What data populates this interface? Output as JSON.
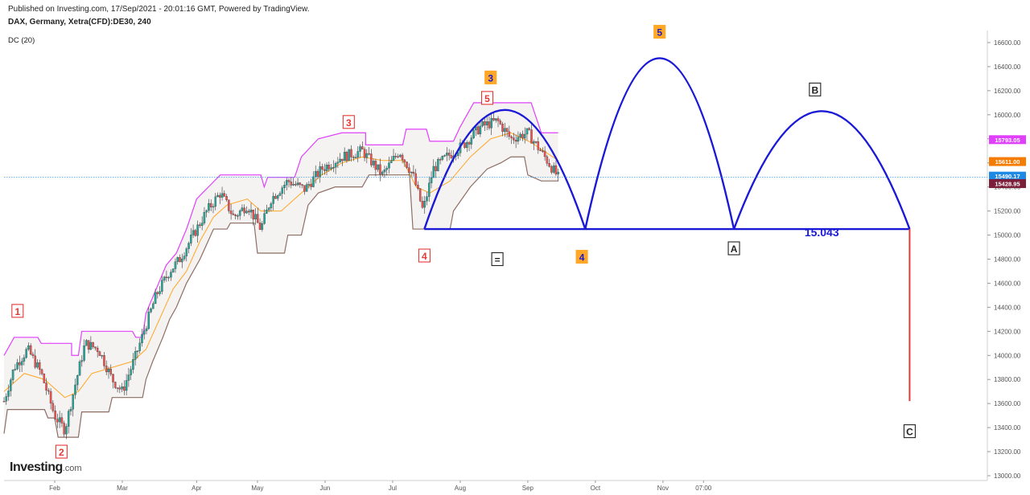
{
  "header": {
    "published": "Published on Investing.com, 17/Sep/2021 - 20:01:16 GMT, Powered by TradingView.",
    "symbol": "DAX, Germany, Xetra(CFD):DE30, 240",
    "indicator": "DC (20)"
  },
  "logo": {
    "brand": "Investing",
    "suffix": ".com"
  },
  "chart_data": {
    "type": "candlestick",
    "x_labels": [
      "Feb",
      "Mar",
      "Apr",
      "May",
      "Jun",
      "Jul",
      "Aug",
      "Sep",
      "Oct",
      "Nov",
      "07:00"
    ],
    "x_label_positions": [
      0.75,
      1.75,
      2.85,
      3.75,
      4.75,
      5.75,
      6.75,
      7.75,
      8.75,
      9.75,
      10.35
    ],
    "y_ticks": [
      "13000.00",
      "13200.00",
      "13400.00",
      "13600.00",
      "13800.00",
      "14000.00",
      "14200.00",
      "14400.00",
      "14600.00",
      "14800.00",
      "15000.00",
      "15200.00",
      "15400.00",
      "15600.00",
      "15800.00",
      "16000.00",
      "16200.00",
      "16400.00",
      "16600.00"
    ],
    "ylim": [
      12960,
      16700
    ],
    "xlim": [
      0,
      14.55
    ],
    "price_line": 15480,
    "price_badges": [
      {
        "label": "15793.05",
        "value": 15793,
        "color": "#e040fb"
      },
      {
        "label": "15611.00",
        "value": 15611,
        "color": "#f57c00"
      },
      {
        "label": "15490.17",
        "value": 15490,
        "color": "#1e88e5"
      },
      {
        "label": "15428.95",
        "value": 15428,
        "color": "#7b1f3a"
      }
    ],
    "price_path": [
      [
        0,
        13620
      ],
      [
        0.15,
        13900
      ],
      [
        0.35,
        14050
      ],
      [
        0.55,
        13850
      ],
      [
        0.75,
        13500
      ],
      [
        0.9,
        13380
      ],
      [
        1.05,
        13750
      ],
      [
        1.2,
        14100
      ],
      [
        1.4,
        14050
      ],
      [
        1.6,
        13800
      ],
      [
        1.75,
        13700
      ],
      [
        1.95,
        14000
      ],
      [
        2.1,
        14250
      ],
      [
        2.25,
        14500
      ],
      [
        2.45,
        14700
      ],
      [
        2.6,
        14800
      ],
      [
        2.8,
        15000
      ],
      [
        3.0,
        15200
      ],
      [
        3.2,
        15350
      ],
      [
        3.4,
        15150
      ],
      [
        3.6,
        15250
      ],
      [
        3.8,
        15050
      ],
      [
        3.95,
        15300
      ],
      [
        4.2,
        15450
      ],
      [
        4.45,
        15380
      ],
      [
        4.7,
        15550
      ],
      [
        5.0,
        15650
      ],
      [
        5.3,
        15700
      ],
      [
        5.6,
        15500
      ],
      [
        5.85,
        15700
      ],
      [
        6.05,
        15500
      ],
      [
        6.2,
        15200
      ],
      [
        6.35,
        15550
      ],
      [
        6.55,
        15650
      ],
      [
        6.8,
        15750
      ],
      [
        7.05,
        15900
      ],
      [
        7.3,
        15950
      ],
      [
        7.5,
        15800
      ],
      [
        7.75,
        15850
      ],
      [
        8.0,
        15650
      ],
      [
        8.2,
        15480
      ]
    ],
    "upper_band": [
      [
        0,
        14000
      ],
      [
        0.15,
        14150
      ],
      [
        0.5,
        14150
      ],
      [
        0.55,
        14100
      ],
      [
        1.0,
        14100
      ],
      [
        1.0,
        14000
      ],
      [
        1.1,
        14000
      ],
      [
        1.15,
        14200
      ],
      [
        1.9,
        14200
      ],
      [
        1.95,
        14150
      ],
      [
        2.05,
        14150
      ],
      [
        2.1,
        14350
      ],
      [
        2.25,
        14550
      ],
      [
        2.4,
        14750
      ],
      [
        2.55,
        14850
      ],
      [
        2.7,
        15050
      ],
      [
        2.85,
        15300
      ],
      [
        3.2,
        15500
      ],
      [
        3.8,
        15500
      ],
      [
        3.85,
        15400
      ],
      [
        3.9,
        15480
      ],
      [
        4.3,
        15480
      ],
      [
        4.4,
        15650
      ],
      [
        4.65,
        15800
      ],
      [
        5.0,
        15850
      ],
      [
        5.35,
        15850
      ],
      [
        5.35,
        15750
      ],
      [
        5.9,
        15750
      ],
      [
        5.95,
        15880
      ],
      [
        6.25,
        15880
      ],
      [
        6.3,
        15780
      ],
      [
        6.65,
        15780
      ],
      [
        6.75,
        15900
      ],
      [
        6.95,
        16100
      ],
      [
        7.8,
        16100
      ],
      [
        7.95,
        15850
      ],
      [
        8.2,
        15850
      ]
    ],
    "lower_band": [
      [
        0,
        13350
      ],
      [
        0.05,
        13550
      ],
      [
        0.6,
        13550
      ],
      [
        0.65,
        13480
      ],
      [
        0.75,
        13480
      ],
      [
        0.8,
        13320
      ],
      [
        1.1,
        13320
      ],
      [
        1.15,
        13530
      ],
      [
        1.55,
        13530
      ],
      [
        1.6,
        13650
      ],
      [
        2.05,
        13650
      ],
      [
        2.1,
        13800
      ],
      [
        2.2,
        13950
      ],
      [
        2.35,
        14150
      ],
      [
        2.45,
        14300
      ],
      [
        2.55,
        14400
      ],
      [
        2.7,
        14600
      ],
      [
        2.9,
        14800
      ],
      [
        3.1,
        15050
      ],
      [
        3.3,
        15050
      ],
      [
        3.35,
        15100
      ],
      [
        3.7,
        15100
      ],
      [
        3.75,
        14850
      ],
      [
        4.15,
        14850
      ],
      [
        4.2,
        15000
      ],
      [
        4.4,
        15000
      ],
      [
        4.5,
        15250
      ],
      [
        4.65,
        15350
      ],
      [
        4.9,
        15400
      ],
      [
        5.3,
        15400
      ],
      [
        5.4,
        15500
      ],
      [
        6.0,
        15500
      ],
      [
        6.05,
        15050
      ],
      [
        6.6,
        15050
      ],
      [
        6.65,
        15200
      ],
      [
        6.9,
        15400
      ],
      [
        7.15,
        15550
      ],
      [
        7.35,
        15600
      ],
      [
        7.5,
        15650
      ],
      [
        7.7,
        15650
      ],
      [
        7.75,
        15500
      ],
      [
        7.95,
        15450
      ],
      [
        8.2,
        15450
      ]
    ],
    "mid_band": [
      [
        0,
        13700
      ],
      [
        0.3,
        13850
      ],
      [
        0.6,
        13800
      ],
      [
        0.9,
        13650
      ],
      [
        1.1,
        13700
      ],
      [
        1.3,
        13850
      ],
      [
        1.6,
        13900
      ],
      [
        1.9,
        13950
      ],
      [
        2.1,
        14050
      ],
      [
        2.3,
        14300
      ],
      [
        2.5,
        14550
      ],
      [
        2.7,
        14700
      ],
      [
        2.9,
        14950
      ],
      [
        3.1,
        15150
      ],
      [
        3.3,
        15250
      ],
      [
        3.6,
        15300
      ],
      [
        3.8,
        15200
      ],
      [
        4.1,
        15200
      ],
      [
        4.4,
        15350
      ],
      [
        4.7,
        15500
      ],
      [
        5.0,
        15600
      ],
      [
        5.3,
        15650
      ],
      [
        5.6,
        15620
      ],
      [
        5.9,
        15620
      ],
      [
        6.1,
        15400
      ],
      [
        6.3,
        15350
      ],
      [
        6.6,
        15450
      ],
      [
        6.9,
        15650
      ],
      [
        7.2,
        15800
      ],
      [
        7.5,
        15850
      ],
      [
        7.8,
        15770
      ],
      [
        8.2,
        15620
      ]
    ],
    "projection": {
      "baseline": {
        "from": 6.22,
        "to": 13.4,
        "value": 15050
      },
      "arches": [
        {
          "from": 6.22,
          "to": 8.6,
          "peak": 16040
        },
        {
          "from": 8.6,
          "to": 10.8,
          "peak": 16470
        },
        {
          "from": 10.8,
          "to": 13.4,
          "peak": 16030
        }
      ],
      "target_line": {
        "x": 13.4,
        "from": 15050,
        "to": 13620
      },
      "level_label": "15.043",
      "level_label_pos": [
        12.1,
        14990
      ]
    },
    "wave_labels": [
      {
        "text": "1",
        "x": 0.2,
        "y": 14370,
        "style": "red"
      },
      {
        "text": "2",
        "x": 0.85,
        "y": 13200,
        "style": "red"
      },
      {
        "text": "3",
        "x": 5.1,
        "y": 15940,
        "style": "red"
      },
      {
        "text": "4",
        "x": 6.22,
        "y": 14830,
        "style": "red"
      },
      {
        "text": "5",
        "x": 7.15,
        "y": 16140,
        "style": "red"
      },
      {
        "text": "3",
        "x": 7.2,
        "y": 16310,
        "style": "orange"
      },
      {
        "text": "=",
        "x": 7.3,
        "y": 14800,
        "style": "box"
      },
      {
        "text": "4",
        "x": 8.55,
        "y": 14820,
        "style": "orange"
      },
      {
        "text": "5",
        "x": 9.7,
        "y": 16690,
        "style": "orange"
      },
      {
        "text": "A",
        "x": 10.8,
        "y": 14890,
        "style": "box"
      },
      {
        "text": "B",
        "x": 12.0,
        "y": 16210,
        "style": "box"
      },
      {
        "text": "C",
        "x": 13.4,
        "y": 13370,
        "style": "box"
      }
    ],
    "colors": {
      "up": "#26a69a",
      "down": "#ef5350",
      "upper": "#e040fb",
      "lower": "#8d6e63",
      "mid": "#ffa726",
      "projection": "#1a1ad6",
      "target": "#e53935",
      "grid_text": "#555555"
    }
  }
}
